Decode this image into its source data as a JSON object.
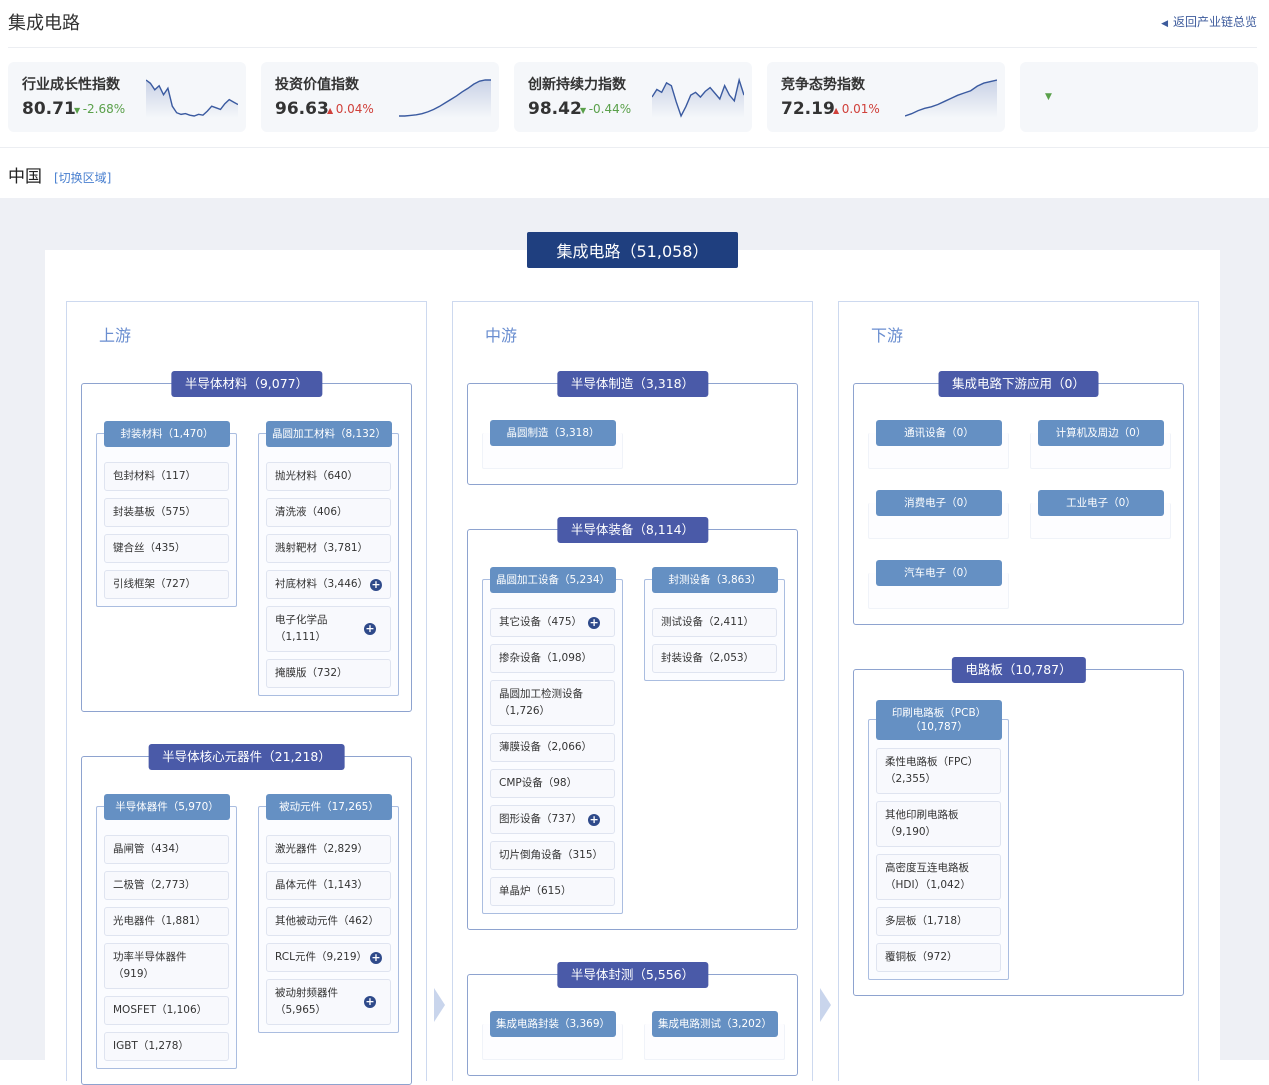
{
  "header": {
    "title": "集成电路",
    "back_label": "返回产业链总览",
    "back_icon": "arrow-left-icon"
  },
  "cards": [
    {
      "title": "行业成长性指数",
      "value": "80.71",
      "delta": "-2.68%",
      "direction": "down",
      "sparkline": [
        62,
        58,
        50,
        55,
        44,
        52,
        30,
        22,
        20,
        21,
        19,
        18,
        20,
        19,
        24,
        30,
        28,
        26,
        33,
        38,
        35,
        32
      ]
    },
    {
      "title": "投资价值指数",
      "value": "96.63",
      "delta": "0.04%",
      "direction": "up",
      "sparkline": [
        1,
        1,
        2,
        3,
        5,
        8,
        12,
        17,
        23,
        29,
        35,
        42,
        48,
        55,
        60,
        62,
        62
      ]
    },
    {
      "title": "创新持续力指数",
      "value": "98.42",
      "delta": "-0.44%",
      "direction": "down",
      "sparkline": [
        40,
        48,
        45,
        55,
        52,
        35,
        20,
        30,
        42,
        45,
        40,
        46,
        50,
        44,
        38,
        52,
        42,
        36,
        58,
        42
      ]
    },
    {
      "title": "竞争态势指数",
      "value": "72.19",
      "delta": "0.01%",
      "direction": "up",
      "sparkline": [
        5,
        8,
        12,
        15,
        17,
        20,
        24,
        28,
        32,
        35,
        38,
        44,
        48,
        50,
        52
      ]
    },
    {
      "title": "",
      "value": "",
      "delta": "",
      "direction": "down",
      "sparkline": []
    }
  ],
  "colors": {
    "up": "#d0403a",
    "down": "#5aa04a",
    "line": "#3a5aa0",
    "root": "#1f3f7f",
    "group": "#4a5aa8",
    "subgroup": "#6590c3"
  },
  "region": {
    "name": "中国",
    "switch_label": "[切换区域]"
  },
  "root": {
    "label": "集成电路（51,058）"
  },
  "columns": [
    {
      "label": "上游",
      "groups": [
        {
          "label": "半导体材料（9,077）",
          "subs": [
            {
              "label": "封装材料（1,470）",
              "items": [
                {
                  "name": "包封材料",
                  "count": "117"
                },
                {
                  "name": "封装基板",
                  "count": "575"
                },
                {
                  "name": "键合丝",
                  "count": "435"
                },
                {
                  "name": "引线框架",
                  "count": "727"
                }
              ]
            },
            {
              "label": "晶圆加工材料（8,132）",
              "items": [
                {
                  "name": "抛光材料",
                  "count": "640"
                },
                {
                  "name": "清洗液",
                  "count": "406"
                },
                {
                  "name": "溅射靶材",
                  "count": "3,781"
                },
                {
                  "name": "衬底材料",
                  "count": "3,446",
                  "expandable": true
                },
                {
                  "name": "电子化学品",
                  "count": "1,111",
                  "expandable": true
                },
                {
                  "name": "掩膜版",
                  "count": "732"
                }
              ]
            }
          ]
        },
        {
          "label": "半导体核心元器件（21,218）",
          "subs": [
            {
              "label": "半导体器件（5,970）",
              "items": [
                {
                  "name": "晶闸管",
                  "count": "434"
                },
                {
                  "name": "二极管",
                  "count": "2,773"
                },
                {
                  "name": "光电器件",
                  "count": "1,881"
                },
                {
                  "name": "功率半导体器件",
                  "count": "919"
                },
                {
                  "name": "MOSFET",
                  "count": "1,106"
                },
                {
                  "name": "IGBT",
                  "count": "1,278"
                }
              ]
            },
            {
              "label": "被动元件（17,265）",
              "items": [
                {
                  "name": "激光器件",
                  "count": "2,829"
                },
                {
                  "name": "晶体元件",
                  "count": "1,143"
                },
                {
                  "name": "其他被动元件",
                  "count": "462"
                },
                {
                  "name": "RCL元件",
                  "count": "9,219",
                  "expandable": true
                },
                {
                  "name": "被动射频器件",
                  "count": "5,965",
                  "expandable": true
                }
              ]
            }
          ]
        }
      ]
    },
    {
      "label": "中游",
      "groups": [
        {
          "label": "半导体制造（3,318）",
          "subs": [
            {
              "label": "晶圆制造（3,318）",
              "items": []
            }
          ]
        },
        {
          "label": "半导体装备（8,114）",
          "subs": [
            {
              "label": "晶圆加工设备（5,234）",
              "items": [
                {
                  "name": "其它设备",
                  "count": "475",
                  "expandable": true
                },
                {
                  "name": "掺杂设备",
                  "count": "1,098"
                },
                {
                  "name": "晶圆加工检测设备",
                  "count": "1,726"
                },
                {
                  "name": "薄膜设备",
                  "count": "2,066"
                },
                {
                  "name": "CMP设备",
                  "count": "98"
                },
                {
                  "name": "图形设备",
                  "count": "737",
                  "expandable": true
                },
                {
                  "name": "切片倒角设备",
                  "count": "315"
                },
                {
                  "name": "单晶炉",
                  "count": "615"
                }
              ]
            },
            {
              "label": "封测设备（3,863）",
              "items": [
                {
                  "name": "测试设备",
                  "count": "2,411"
                },
                {
                  "name": "封装设备",
                  "count": "2,053"
                }
              ]
            }
          ]
        },
        {
          "label": "半导体封测（5,556）",
          "subs": [
            {
              "label": "集成电路封装（3,369）",
              "items": []
            },
            {
              "label": "集成电路测试（3,202）",
              "items": []
            }
          ]
        }
      ]
    },
    {
      "label": "下游",
      "groups": [
        {
          "label": "集成电路下游应用（0）",
          "subs": [
            {
              "label": "通讯设备（0）",
              "items": []
            },
            {
              "label": "计算机及周边（0）",
              "items": []
            },
            {
              "label": "消费电子（0）",
              "items": []
            },
            {
              "label": "工业电子（0）",
              "items": []
            },
            {
              "label": "汽车电子（0）",
              "items": []
            }
          ]
        },
        {
          "label": "电路板（10,787）",
          "subs": [
            {
              "label": "印刷电路板（PCB）（10,787）",
              "items": [
                {
                  "name": "柔性电路板（FPC）",
                  "count": "2,355"
                },
                {
                  "name": "其他印刷电路板",
                  "count": "9,190"
                },
                {
                  "name": "高密度互连电路板（HDI）",
                  "count": "1,042"
                },
                {
                  "name": "多层板",
                  "count": "1,718"
                },
                {
                  "name": "覆铜板",
                  "count": "972"
                }
              ]
            }
          ]
        }
      ]
    }
  ]
}
